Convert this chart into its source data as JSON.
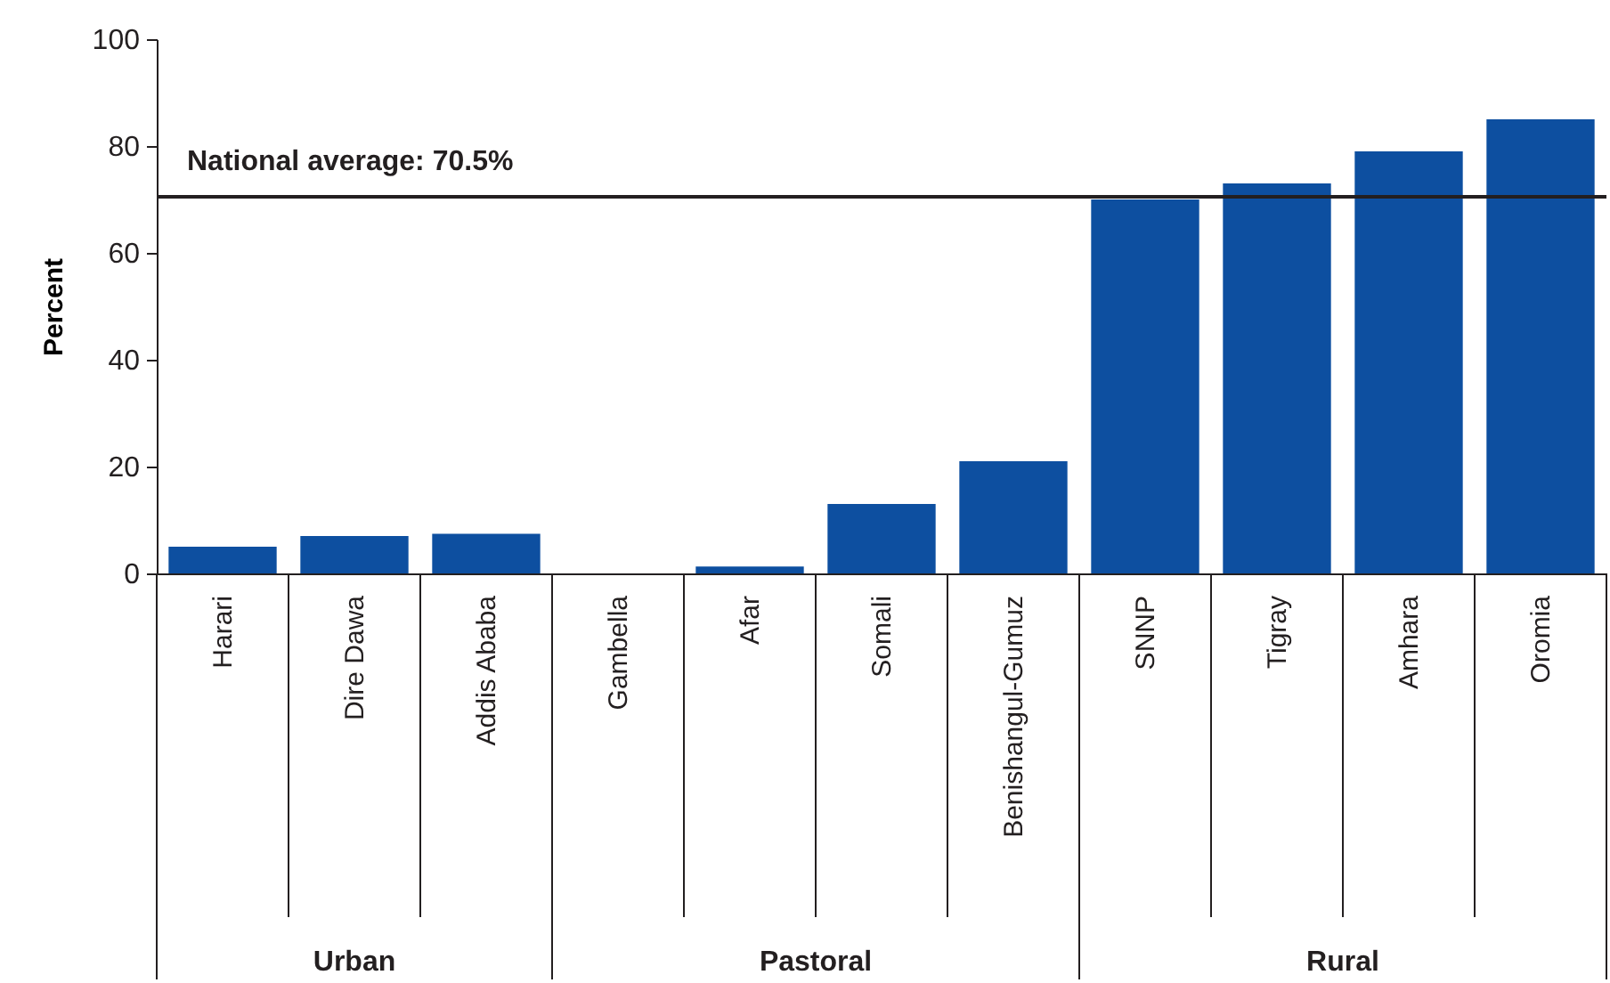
{
  "chart_data": {
    "type": "bar",
    "ylabel": "Percent",
    "categories": [
      "Harari",
      "Dire Dawa",
      "Addis Ababa",
      "Gambella",
      "Afar",
      "Somali",
      "Benishangul-Gumuz",
      "SNNP",
      "Tigray",
      "Amhara",
      "Oromia"
    ],
    "values": [
      5,
      7,
      7.4,
      0,
      1.3,
      13,
      21,
      70,
      73,
      79,
      85
    ],
    "color": "#0d4fa0",
    "ylim": [
      0,
      100
    ],
    "yticks": [
      0,
      20,
      40,
      60,
      80,
      100
    ],
    "grid": false,
    "ref_lines": [
      {
        "axis": "y",
        "value": 70.5,
        "label": "National average: 70.5%",
        "color": "#231f20"
      }
    ],
    "annotations": [
      "Urban",
      "Pastoral",
      "Rural"
    ]
  }
}
